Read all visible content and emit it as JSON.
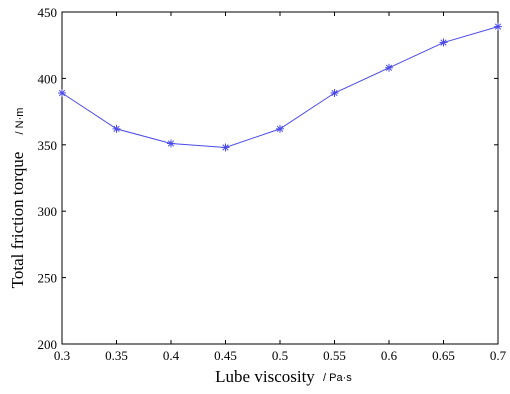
{
  "chart_data": {
    "type": "line",
    "title": "",
    "xlabel": "Lube viscosity",
    "xunit": "/ Pa·s",
    "ylabel": "Total friction torque",
    "yunit": "/ N·m",
    "xlim": [
      0.3,
      0.7
    ],
    "ylim": [
      200,
      450
    ],
    "xticks": [
      0.3,
      0.35,
      0.4,
      0.45,
      0.5,
      0.55,
      0.6,
      0.65,
      0.7
    ],
    "xtick_labels": [
      "0.3",
      "0.35",
      "0.4",
      "0.45",
      "0.5",
      "0.55",
      "0.6",
      "0.65",
      "0.7"
    ],
    "yticks": [
      200,
      250,
      300,
      350,
      400,
      450
    ],
    "ytick_labels": [
      "200",
      "250",
      "300",
      "350",
      "400",
      "450"
    ],
    "grid": false,
    "marker": "asterisk",
    "line_color": "#4a4ae8",
    "series": [
      {
        "x": [
          0.3,
          0.35,
          0.4,
          0.45,
          0.5,
          0.55,
          0.6,
          0.65,
          0.7
        ],
        "values": [
          389,
          362,
          351,
          348,
          362,
          389,
          408,
          427,
          439
        ]
      }
    ]
  }
}
